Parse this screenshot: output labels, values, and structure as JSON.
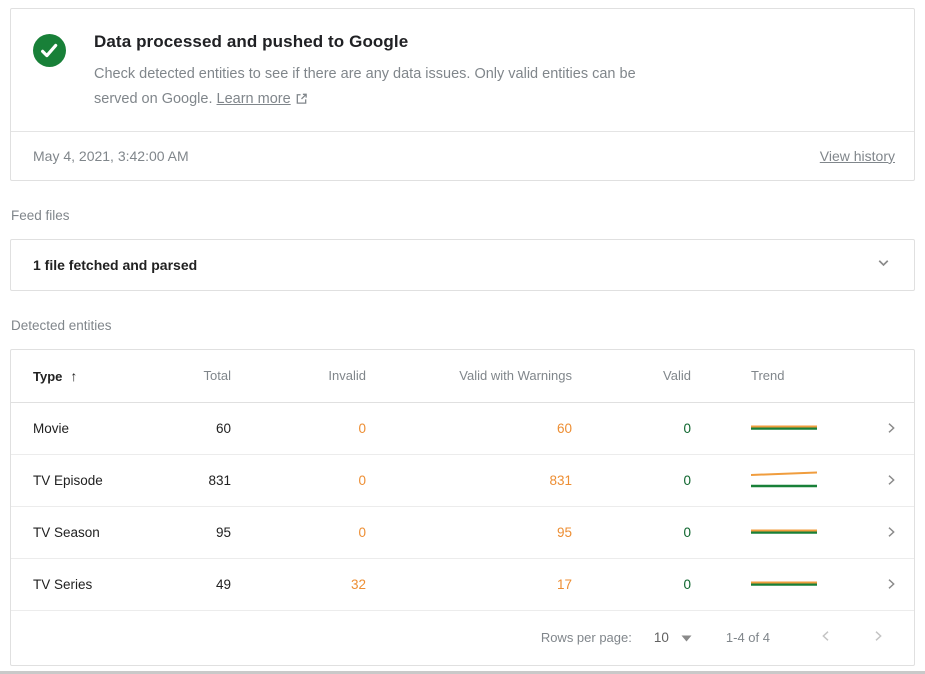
{
  "status_card": {
    "title": "Data processed and pushed to Google",
    "description": "Check detected entities to see if there are any data issues. Only valid entities can be served on Google.",
    "learn_more_label": "Learn more",
    "timestamp": "May 4, 2021, 3:42:00 AM",
    "view_history_label": "View history"
  },
  "feed_files": {
    "section_label": "Feed files",
    "summary": "1 file fetched and parsed"
  },
  "detected_entities": {
    "section_label": "Detected entities",
    "columns": {
      "type": "Type",
      "total": "Total",
      "invalid": "Invalid",
      "valid_with_warnings": "Valid with Warnings",
      "valid": "Valid",
      "trend": "Trend"
    },
    "sort": {
      "column": "Type",
      "direction": "ascending",
      "arrow_glyph": "↑"
    },
    "rows": [
      {
        "type": "Movie",
        "total": "60",
        "invalid": "0",
        "valid_with_warnings": "60",
        "valid": "0",
        "trend": {
          "warning_points": [
            [
              0,
              10.5
            ],
            [
              66,
              10.5
            ]
          ],
          "valid_points": [
            [
              0,
              12.5
            ],
            [
              66,
              12.5
            ]
          ]
        }
      },
      {
        "type": "TV Episode",
        "total": "831",
        "invalid": "0",
        "valid_with_warnings": "831",
        "valid": "0",
        "trend": {
          "warning_points": [
            [
              0,
              7
            ],
            [
              66,
              4.5
            ]
          ],
          "valid_points": [
            [
              0,
              18
            ],
            [
              66,
              18
            ]
          ]
        }
      },
      {
        "type": "TV Season",
        "total": "95",
        "invalid": "0",
        "valid_with_warnings": "95",
        "valid": "0",
        "trend": {
          "warning_points": [
            [
              0,
              10.5
            ],
            [
              66,
              10.5
            ]
          ],
          "valid_points": [
            [
              0,
              12.5
            ],
            [
              66,
              12.5
            ]
          ]
        }
      },
      {
        "type": "TV Series",
        "total": "49",
        "invalid": "32",
        "valid_with_warnings": "17",
        "valid": "0",
        "trend": {
          "warning_points": [
            [
              0,
              10.5
            ],
            [
              66,
              10.5
            ]
          ],
          "valid_points": [
            [
              0,
              12.5
            ],
            [
              66,
              12.5
            ]
          ]
        }
      }
    ],
    "pagination": {
      "rows_per_page_label": "Rows per page:",
      "rows_per_page_value": "10",
      "range_label": "1-4 of 4"
    }
  },
  "icons": {
    "status": "check-circle",
    "learn_more_suffix": "external-link",
    "feed_card": "chevron-down",
    "row_action": "chevron-right",
    "rows_per_page": "dropdown-triangle",
    "page_prev": "chevron-left",
    "page_next": "chevron-right"
  },
  "colors": {
    "success_green": "#188038",
    "trend_warning": "#f09d3e",
    "trend_valid": "#188038",
    "warning_text": "#ed8e33",
    "valid_text": "#0d652d"
  }
}
